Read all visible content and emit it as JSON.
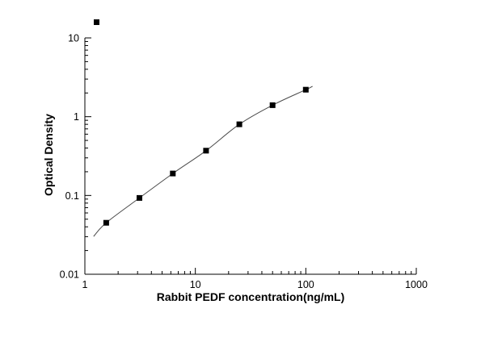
{
  "chart_data": {
    "type": "scatter",
    "title": "",
    "xlabel": "Rabbit PEDF concentration(ng/mL)",
    "ylabel": "Optical Density",
    "xscale": "log",
    "yscale": "log",
    "xlim": [
      1,
      1000
    ],
    "ylim": [
      0.01,
      10
    ],
    "grid": false,
    "x_tick_labels": [
      "1",
      "10",
      "100",
      "1000"
    ],
    "y_tick_labels": [
      "0.01",
      "0.1",
      "1",
      "10"
    ],
    "series": [
      {
        "name": "standard-curve-points",
        "marker": "filled-black-square",
        "x": [
          1.56,
          3.12,
          6.25,
          12.5,
          25,
          50,
          100
        ],
        "y": [
          0.045,
          0.093,
          0.19,
          0.37,
          0.8,
          1.4,
          2.2
        ]
      }
    ],
    "fit_curve": {
      "present": true,
      "style": "thin smooth line through points",
      "color": "#4a4a4a"
    },
    "annotations": [
      "stray-square-marker-top-left"
    ],
    "colors": {
      "axis": "#000000",
      "marker": "#000000",
      "curve": "#4a4a4a",
      "background": "#ffffff"
    }
  }
}
